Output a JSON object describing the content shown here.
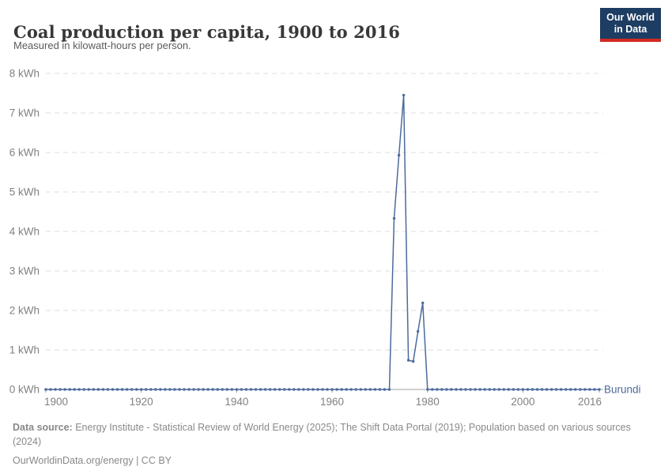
{
  "header": {
    "title": "Coal production per capita, 1900 to 2016",
    "subtitle": "Measured in kilowatt-hours per person.",
    "logo": {
      "line1": "Our World",
      "line2": "in Data",
      "bg_color": "#1d3d63",
      "accent_color": "#d42b21"
    }
  },
  "chart_data": {
    "type": "line",
    "title": "Coal production per capita, 1900 to 2016",
    "subtitle": "Measured in kilowatt-hours per person.",
    "xlabel": "",
    "ylabel": "kilowatt-hours per person",
    "xlim": [
      1900,
      2016
    ],
    "ylim": [
      0,
      8
    ],
    "grid": "horizontal dashed",
    "x_ticks": [
      1900,
      1920,
      1940,
      1960,
      1980,
      2000,
      2016
    ],
    "x_tick_labels": [
      "1900",
      "1920",
      "1940",
      "1960",
      "1980",
      "2000",
      "2016"
    ],
    "y_ticks": [
      0,
      1,
      2,
      3,
      4,
      5,
      6,
      7,
      8
    ],
    "y_tick_labels": [
      "0 kWh",
      "1 kWh",
      "2 kWh",
      "3 kWh",
      "4 kWh",
      "5 kWh",
      "6 kWh",
      "7 kWh",
      "8 kWh"
    ],
    "legend_position": "end-of-line label",
    "series": [
      {
        "name": "Burundi",
        "color": "#4C6A9C",
        "x_start": 1900,
        "nonzero_points": {
          "1973": 4.33,
          "1974": 5.93,
          "1975": 7.45,
          "1976": 0.74,
          "1977": 0.71,
          "1978": 1.47,
          "1979": 2.19
        },
        "values": [
          0,
          0,
          0,
          0,
          0,
          0,
          0,
          0,
          0,
          0,
          0,
          0,
          0,
          0,
          0,
          0,
          0,
          0,
          0,
          0,
          0,
          0,
          0,
          0,
          0,
          0,
          0,
          0,
          0,
          0,
          0,
          0,
          0,
          0,
          0,
          0,
          0,
          0,
          0,
          0,
          0,
          0,
          0,
          0,
          0,
          0,
          0,
          0,
          0,
          0,
          0,
          0,
          0,
          0,
          0,
          0,
          0,
          0,
          0,
          0,
          0,
          0,
          0,
          0,
          0,
          0,
          0,
          0,
          0,
          0,
          0,
          0,
          0,
          4.33,
          5.93,
          7.45,
          0.74,
          0.71,
          1.47,
          2.19,
          0,
          0,
          0,
          0,
          0,
          0,
          0,
          0,
          0,
          0,
          0,
          0,
          0,
          0,
          0,
          0,
          0,
          0,
          0,
          0,
          0,
          0,
          0,
          0,
          0,
          0,
          0,
          0,
          0,
          0,
          0,
          0,
          0,
          0,
          0,
          0,
          0
        ]
      }
    ],
    "colors": {
      "line": "#4C6A9C",
      "gridline": "#dedede",
      "axis": "#a1a1a1",
      "tick_label": "#818181"
    }
  },
  "footer": {
    "datasource_label": "Data source:",
    "datasource_text": " Energy Institute - Statistical Review of World Energy (2025); The Shift Data Portal (2019); Population based on various sources (2024)",
    "license_text": "OurWorldinData.org/energy | CC BY"
  }
}
